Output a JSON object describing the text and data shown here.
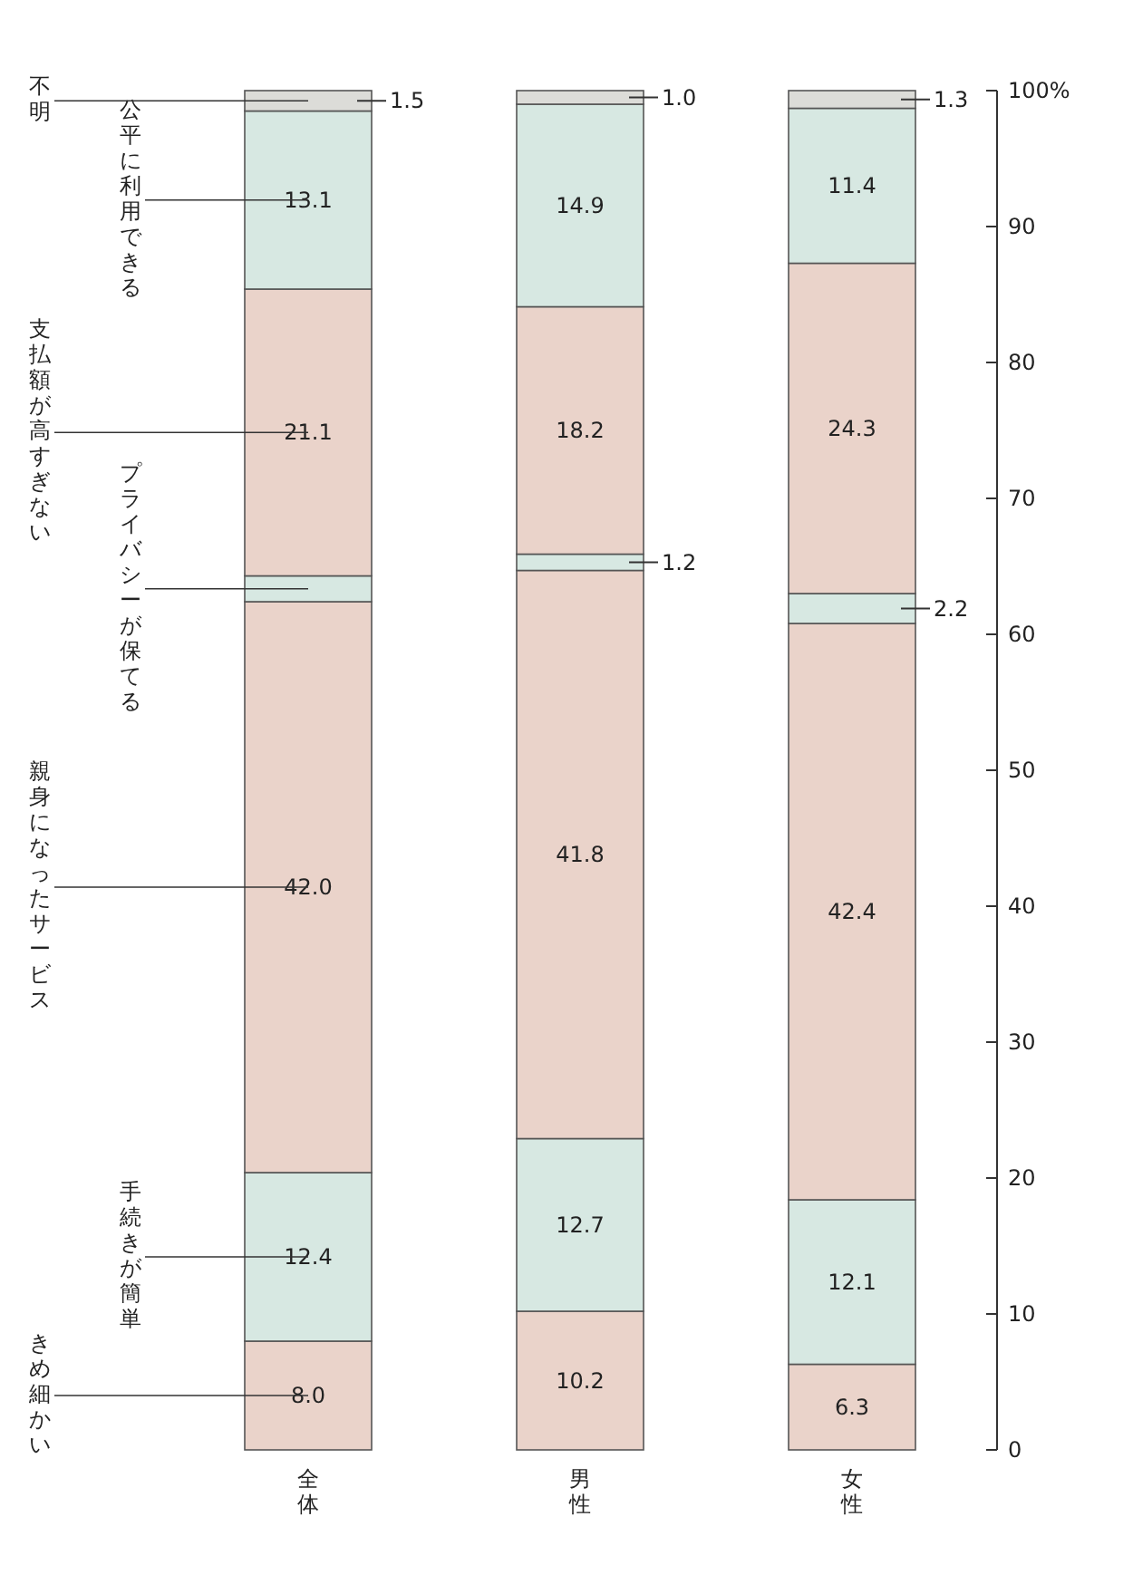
{
  "chart_data": {
    "type": "bar",
    "stacked": true,
    "categories": [
      "全体",
      "男性",
      "女性"
    ],
    "ylim": [
      0,
      100
    ],
    "yticks": [
      0,
      10,
      20,
      30,
      40,
      50,
      60,
      70,
      80,
      90,
      {
        "value": 100,
        "label": "100%"
      }
    ],
    "series": [
      {
        "name": "きめ細かい",
        "color": "#ead3ca",
        "values": [
          8.0,
          10.2,
          6.3
        ],
        "value_labels": [
          "8.0",
          "10.2",
          "6.3"
        ]
      },
      {
        "name": "手続きが簡単",
        "color": "#d7e8e2",
        "values": [
          12.4,
          12.7,
          12.1
        ],
        "value_labels": [
          "12.4",
          "12.7",
          "12.1"
        ]
      },
      {
        "name": "親身になったサービス",
        "color": "#ead3ca",
        "values": [
          42.0,
          41.8,
          42.4
        ],
        "value_labels": [
          "42.0",
          "41.8",
          "42.4"
        ]
      },
      {
        "name": "プライバシーが保てる",
        "color": "#d7e8e2",
        "values": [
          1.9,
          1.2,
          2.2
        ],
        "value_labels": [
          null,
          "1.2",
          "2.2"
        ]
      },
      {
        "name": "支払額が高すぎない",
        "color": "#ead3ca",
        "values": [
          21.1,
          18.2,
          24.3
        ],
        "value_labels": [
          "21.1",
          "18.2",
          "24.3"
        ]
      },
      {
        "name": "公平に利用できる",
        "color": "#d7e8e2",
        "values": [
          13.1,
          14.9,
          11.4
        ],
        "value_labels": [
          "13.1",
          "14.9",
          "11.4"
        ]
      },
      {
        "name": "不明",
        "color": "#dcdcd8",
        "values": [
          1.5,
          1.0,
          1.3
        ],
        "value_labels": [
          "1.5",
          "1.0",
          "1.3"
        ]
      }
    ]
  }
}
